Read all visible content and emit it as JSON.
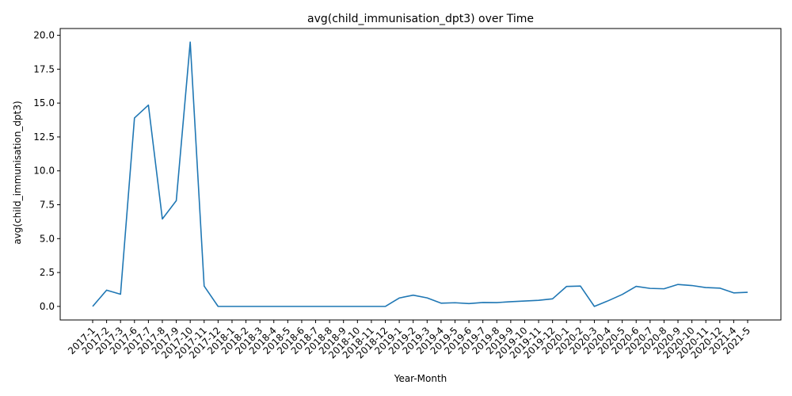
{
  "chart_data": {
    "type": "line",
    "title": "avg(child_immunisation_dpt3) over Time",
    "xlabel": "Year-Month",
    "ylabel": "avg(child_immunisation_dpt3)",
    "ylim": [
      -1.0,
      20.5
    ],
    "yticks": [
      "0.0",
      "2.5",
      "5.0",
      "7.5",
      "10.0",
      "12.5",
      "15.0",
      "17.5",
      "20.0"
    ],
    "ytick_values": [
      0,
      2.5,
      5,
      7.5,
      10,
      12.5,
      15,
      17.5,
      20
    ],
    "line_color": "#1f77b4",
    "grid": false,
    "categories": [
      "2017-1",
      "2017-2",
      "2017-3",
      "2017-6",
      "2017-7",
      "2017-8",
      "2017-9",
      "2017-10",
      "2017-11",
      "2017-12",
      "2018-1",
      "2018-2",
      "2018-3",
      "2018-4",
      "2018-5",
      "2018-6",
      "2018-7",
      "2018-8",
      "2018-9",
      "2018-10",
      "2018-11",
      "2018-12",
      "2019-1",
      "2019-2",
      "2019-3",
      "2019-4",
      "2019-5",
      "2019-6",
      "2019-7",
      "2019-8",
      "2019-9",
      "2019-10",
      "2019-11",
      "2019-12",
      "2020-1",
      "2020-2",
      "2020-3",
      "2020-4",
      "2020-5",
      "2020-6",
      "2020-7",
      "2020-8",
      "2020-9",
      "2020-10",
      "2020-11",
      "2020-12",
      "2021-4",
      "2021-5"
    ],
    "values": [
      0.0,
      1.2,
      0.9,
      13.9,
      14.85,
      6.45,
      7.8,
      19.5,
      1.5,
      0.0,
      0.0,
      0.0,
      0.0,
      0.0,
      0.0,
      0.0,
      0.0,
      0.0,
      0.0,
      0.0,
      0.0,
      0.0,
      0.62,
      0.83,
      0.63,
      0.24,
      0.27,
      0.21,
      0.29,
      0.28,
      0.35,
      0.4,
      0.45,
      0.56,
      1.47,
      1.5,
      0.0,
      0.42,
      0.88,
      1.48,
      1.33,
      1.3,
      1.62,
      1.54,
      1.39,
      1.35,
      1.0,
      1.04
    ]
  }
}
